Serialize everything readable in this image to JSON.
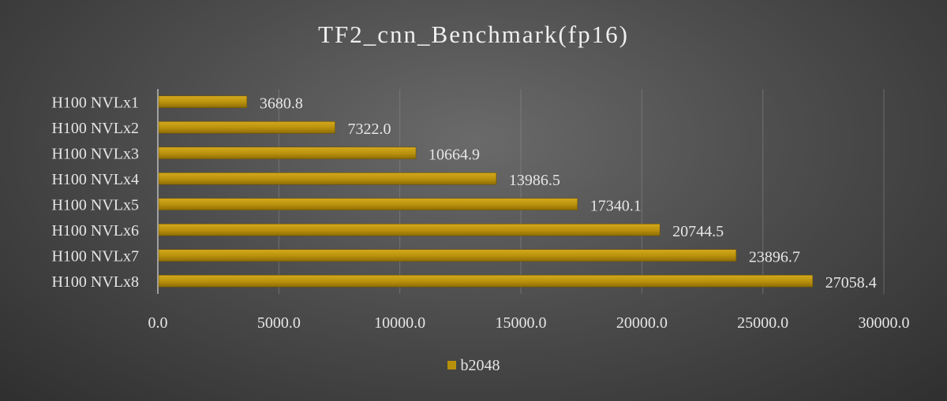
{
  "chart_data": {
    "type": "bar",
    "orientation": "horizontal",
    "title": "TF2_cnn_Benchmark(fp16)",
    "categories": [
      "H100 NVLx1",
      "H100 NVLx2",
      "H100 NVLx3",
      "H100 NVLx4",
      "H100 NVLx5",
      "H100 NVLx6",
      "H100 NVLx7",
      "H100 NVLx8"
    ],
    "series": [
      {
        "name": "b2048",
        "color": "#b8900c",
        "values": [
          3680.8,
          7322.0,
          10664.9,
          13986.5,
          17340.1,
          20744.5,
          23896.7,
          27058.4
        ],
        "value_labels": [
          "3680.8",
          "7322.0",
          "10664.9",
          "13986.5",
          "17340.1",
          "20744.5",
          "23896.7",
          "27058.4"
        ]
      }
    ],
    "xlim": [
      0,
      30000
    ],
    "x_ticks": [
      0,
      5000,
      10000,
      15000,
      20000,
      25000,
      30000
    ],
    "x_tick_labels": [
      "0.0",
      "5000.0",
      "10000.0",
      "15000.0",
      "20000.0",
      "25000.0",
      "30000.0"
    ],
    "xlabel": "",
    "ylabel": "",
    "grid": "vertical",
    "legend_position": "bottom"
  }
}
